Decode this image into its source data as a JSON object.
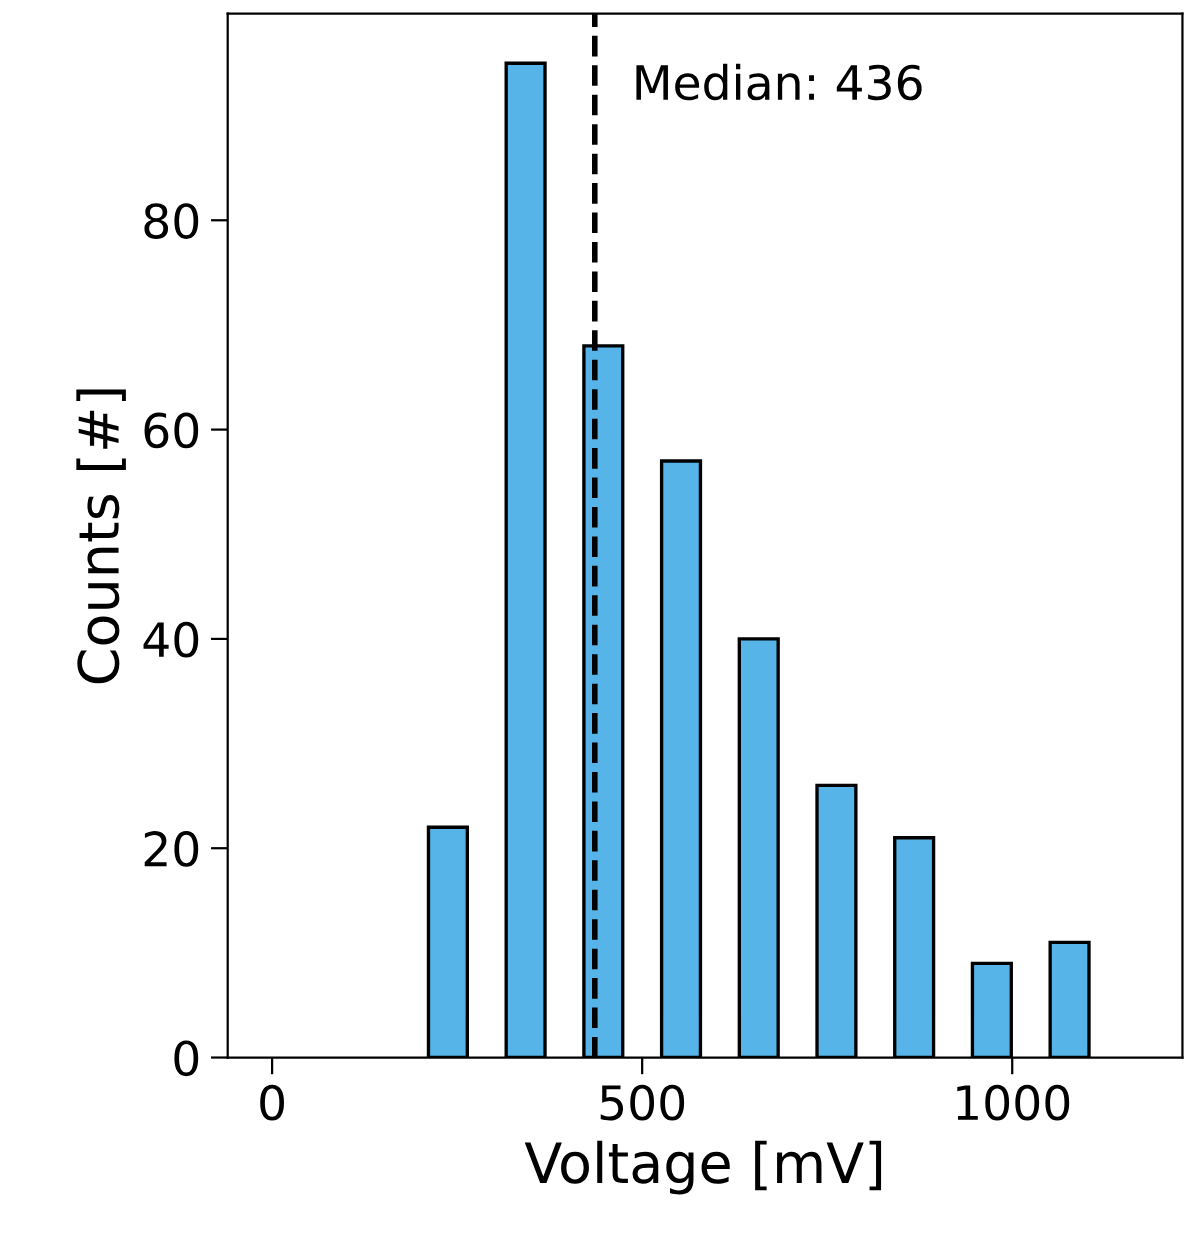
{
  "chart_data": {
    "type": "histogram",
    "xlabel": "Voltage [mV]",
    "ylabel": "Counts [#]",
    "bins": [
      185,
      290,
      395,
      500,
      605,
      710,
      815,
      920,
      1025,
      1130
    ],
    "values": [
      22,
      95,
      68,
      57,
      40,
      26,
      21,
      9,
      11
    ],
    "color": "#56b4e9",
    "xlim": [
      -60,
      1230
    ],
    "xticks": [
      0,
      500,
      1000
    ],
    "ylim": [
      0,
      99.75
    ],
    "yticks": [
      0,
      20,
      40,
      60,
      80
    ],
    "ref_lines": [
      {
        "axis": "x",
        "value": 436,
        "label": "Median: 436",
        "color": "#000000",
        "line_style": "dashed"
      }
    ],
    "grid": false
  }
}
